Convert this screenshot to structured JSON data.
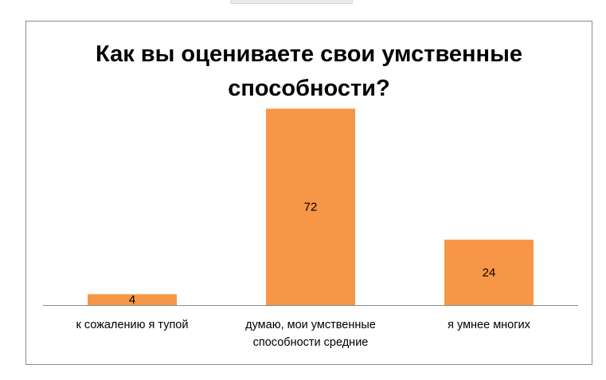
{
  "chart_data": {
    "type": "bar",
    "title": "Как вы оцениваете свои умственные способности?",
    "categories": [
      "к сожалению я тупой",
      "думаю, мои умственные способности средние",
      "я умнее многих"
    ],
    "values": [
      4,
      72,
      24
    ],
    "data_labels": [
      "4",
      "72",
      "24"
    ],
    "xlabel": "",
    "ylabel": "",
    "ylim": [
      0,
      80
    ],
    "grid": false,
    "legend": "none",
    "bar_color": "#F79646",
    "axis_color": "#8c8c8c"
  }
}
